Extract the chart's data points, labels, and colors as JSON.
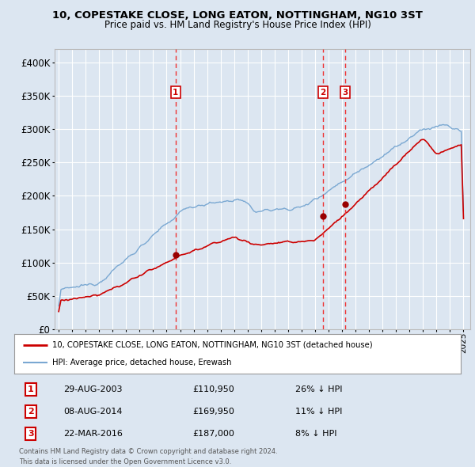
{
  "title": "10, COPESTAKE CLOSE, LONG EATON, NOTTINGHAM, NG10 3ST",
  "subtitle": "Price paid vs. HM Land Registry's House Price Index (HPI)",
  "legend_line1": "10, COPESTAKE CLOSE, LONG EATON, NOTTINGHAM, NG10 3ST (detached house)",
  "legend_line2": "HPI: Average price, detached house, Erewash",
  "footer1": "Contains HM Land Registry data © Crown copyright and database right 2024.",
  "footer2": "This data is licensed under the Open Government Licence v3.0.",
  "transactions": [
    {
      "num": 1,
      "date": "29-AUG-2003",
      "price": "£110,950",
      "hpi": "26% ↓ HPI",
      "year": 2003.66
    },
    {
      "num": 2,
      "date": "08-AUG-2014",
      "price": "£169,950",
      "hpi": "11% ↓ HPI",
      "year": 2014.6
    },
    {
      "num": 3,
      "date": "22-MAR-2016",
      "price": "£187,000",
      "hpi": "8% ↓ HPI",
      "year": 2016.22
    }
  ],
  "transaction_values": [
    110950,
    169950,
    187000
  ],
  "background_color": "#dce6f1",
  "plot_bg_color": "#dce6f1",
  "red_line_color": "#cc0000",
  "blue_line_color": "#7aa8d2",
  "grid_color": "#ffffff",
  "vline_color": "#ee3333",
  "marker_color": "#990000",
  "ylim": [
    0,
    420000
  ],
  "yticks": [
    0,
    50000,
    100000,
    150000,
    200000,
    250000,
    300000,
    350000,
    400000
  ],
  "ytick_labels": [
    "£0",
    "£50K",
    "£100K",
    "£150K",
    "£200K",
    "£250K",
    "£300K",
    "£350K",
    "£400K"
  ],
  "xtick_years": [
    1995,
    1996,
    1997,
    1998,
    1999,
    2000,
    2001,
    2002,
    2003,
    2004,
    2005,
    2006,
    2007,
    2008,
    2009,
    2010,
    2011,
    2012,
    2013,
    2014,
    2015,
    2016,
    2017,
    2018,
    2019,
    2020,
    2021,
    2022,
    2023,
    2024,
    2025
  ],
  "xlim": [
    1994.7,
    2025.5
  ]
}
